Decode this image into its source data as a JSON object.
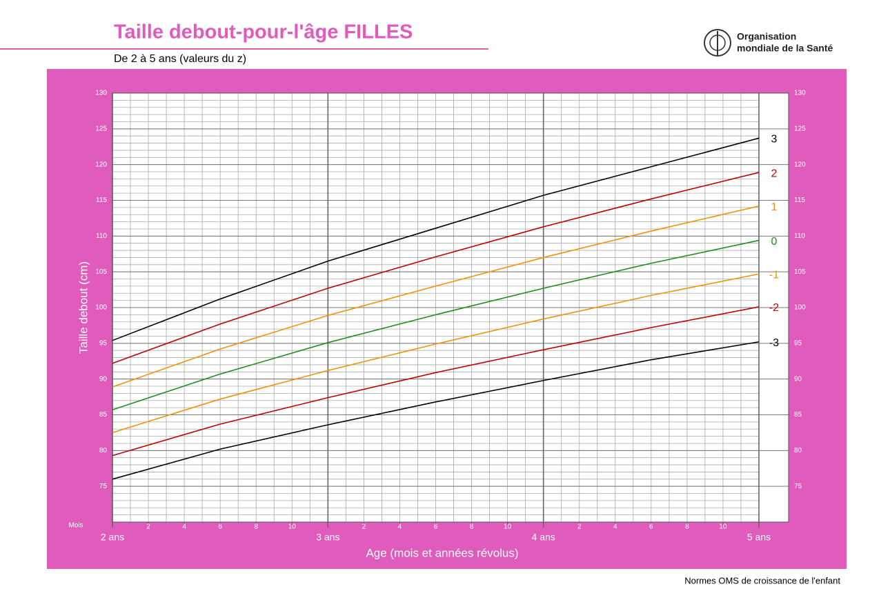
{
  "chart_data": {
    "type": "line",
    "title": "Taille debout-pour-l'âge  FILLES",
    "subtitle": "De 2 à 5 ans (valeurs du z)",
    "logo_text": [
      "Organisation",
      "mondiale de la Santé"
    ],
    "footer": "Normes OMS de croissance de l'enfant",
    "y_label": "Taille debout (cm)",
    "x_label": "Age (mois et années révolus)",
    "x_unit_label": "Mois",
    "x": [
      24,
      30,
      36,
      42,
      48,
      54,
      60
    ],
    "xlim": [
      24,
      60
    ],
    "xticks": [
      {
        "value": 24,
        "label": "2 ans"
      },
      {
        "value": 36,
        "label": "3 ans"
      },
      {
        "value": 48,
        "label": "4 ans"
      },
      {
        "value": 60,
        "label": "5 ans"
      }
    ],
    "xminorticks": [
      {
        "value": 26,
        "label": "2"
      },
      {
        "value": 28,
        "label": "4"
      },
      {
        "value": 30,
        "label": "6"
      },
      {
        "value": 32,
        "label": "8"
      },
      {
        "value": 34,
        "label": "10"
      },
      {
        "value": 38,
        "label": "2"
      },
      {
        "value": 40,
        "label": "4"
      },
      {
        "value": 42,
        "label": "6"
      },
      {
        "value": 44,
        "label": "8"
      },
      {
        "value": 46,
        "label": "10"
      },
      {
        "value": 50,
        "label": "2"
      },
      {
        "value": 52,
        "label": "4"
      },
      {
        "value": 54,
        "label": "6"
      },
      {
        "value": 56,
        "label": "8"
      },
      {
        "value": 58,
        "label": "10"
      }
    ],
    "ylim": [
      70,
      130
    ],
    "yticks": [
      75,
      80,
      85,
      90,
      95,
      100,
      105,
      110,
      115,
      120,
      125,
      130
    ],
    "grid": true,
    "series": [
      {
        "name": "3",
        "color": "#000000",
        "values": [
          95.4,
          101.2,
          106.5,
          111.1,
          115.7,
          119.7,
          123.7
        ]
      },
      {
        "name": "2",
        "color": "#c00000",
        "values": [
          92.2,
          97.7,
          102.7,
          107.1,
          111.3,
          115.2,
          118.9
        ]
      },
      {
        "name": "1",
        "color": "#f39200",
        "values": [
          88.9,
          94.2,
          98.9,
          103.0,
          107.0,
          110.7,
          114.2
        ]
      },
      {
        "name": "0",
        "color": "#1e8c1e",
        "values": [
          85.7,
          90.7,
          95.1,
          99.0,
          102.7,
          106.2,
          109.4
        ]
      },
      {
        "name": "-1",
        "color": "#f39200",
        "values": [
          82.5,
          87.2,
          91.2,
          94.9,
          98.4,
          101.7,
          104.7
        ]
      },
      {
        "name": "-2",
        "color": "#c00000",
        "values": [
          79.3,
          83.7,
          87.4,
          90.9,
          94.1,
          97.2,
          100.1
        ]
      },
      {
        "name": "-3",
        "color": "#000000",
        "values": [
          76.0,
          80.2,
          83.6,
          86.8,
          89.8,
          92.7,
          95.2
        ]
      }
    ]
  }
}
